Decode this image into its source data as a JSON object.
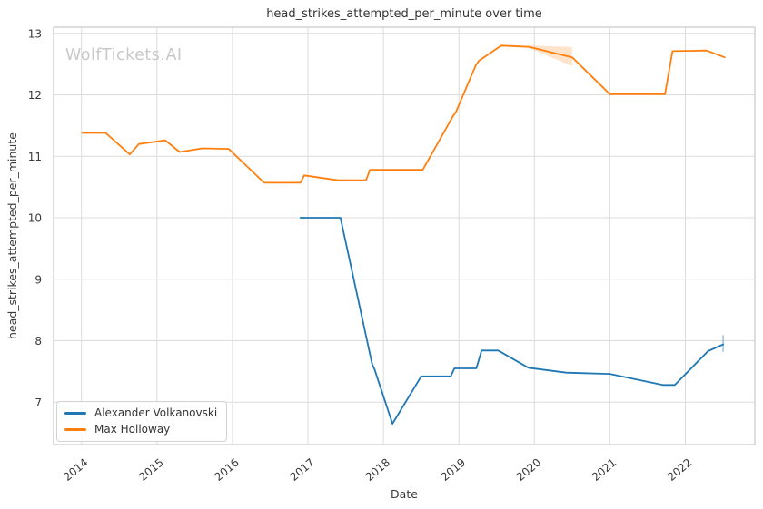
{
  "chart_data": {
    "type": "line",
    "title": "head_strikes_attempted_per_minute over time",
    "xlabel": "Date",
    "ylabel": "head_strikes_attempted_per_minute",
    "watermark": "WolfTickets.AI",
    "grid": true,
    "legend_position": "lower-left",
    "xlim": [
      2013.63,
      2022.92
    ],
    "ylim": [
      6.31,
      13.1
    ],
    "x_ticks": [
      2014,
      2015,
      2016,
      2017,
      2018,
      2019,
      2020,
      2021,
      2022
    ],
    "y_ticks": [
      7,
      8,
      9,
      10,
      11,
      12,
      13
    ],
    "series": [
      {
        "name": "Alexander Volkanovski",
        "color": "#1f77b4",
        "points": [
          [
            2016.9,
            10.0
          ],
          [
            2017.43,
            10.0
          ],
          [
            2017.85,
            7.62
          ],
          [
            2017.88,
            7.54
          ],
          [
            2018.12,
            6.65
          ],
          [
            2018.5,
            7.42
          ],
          [
            2018.89,
            7.42
          ],
          [
            2018.94,
            7.55
          ],
          [
            2019.23,
            7.55
          ],
          [
            2019.3,
            7.84
          ],
          [
            2019.52,
            7.84
          ],
          [
            2019.92,
            7.56
          ],
          [
            2020.42,
            7.48
          ],
          [
            2021.0,
            7.46
          ],
          [
            2021.7,
            7.28
          ],
          [
            2021.86,
            7.28
          ],
          [
            2022.3,
            7.83
          ],
          [
            2022.5,
            7.94
          ]
        ],
        "error_bar": {
          "x": 2022.5,
          "low": 7.82,
          "high": 8.09
        }
      },
      {
        "name": "Max Holloway",
        "color": "#ff7f0e",
        "points": [
          [
            2014.01,
            11.38
          ],
          [
            2014.32,
            11.38
          ],
          [
            2014.64,
            11.03
          ],
          [
            2014.76,
            11.2
          ],
          [
            2015.11,
            11.26
          ],
          [
            2015.3,
            11.07
          ],
          [
            2015.6,
            11.13
          ],
          [
            2015.95,
            11.12
          ],
          [
            2016.42,
            10.57
          ],
          [
            2016.9,
            10.57
          ],
          [
            2016.95,
            10.69
          ],
          [
            2017.4,
            10.61
          ],
          [
            2017.77,
            10.61
          ],
          [
            2017.82,
            10.78
          ],
          [
            2018.52,
            10.78
          ],
          [
            2018.92,
            11.65
          ],
          [
            2018.96,
            11.72
          ],
          [
            2019.22,
            12.47
          ],
          [
            2019.26,
            12.55
          ],
          [
            2019.56,
            12.8
          ],
          [
            2019.93,
            12.78
          ],
          [
            2020.5,
            12.61
          ],
          [
            2021.0,
            12.01
          ],
          [
            2021.73,
            12.01
          ],
          [
            2021.83,
            12.71
          ],
          [
            2022.28,
            12.72
          ],
          [
            2022.52,
            12.61
          ]
        ],
        "band": [
          {
            "x": 2019.93,
            "low": 12.76,
            "high": 12.8
          },
          {
            "x": 2020.5,
            "low": 12.47,
            "high": 12.78
          }
        ]
      }
    ]
  },
  "theme": {
    "grid_color": "#dcdcdc",
    "spine_color": "#c9c9c9",
    "text_color": "#3a3a3a",
    "watermark_color": "#c9c9c9",
    "line_width": 1.8,
    "band_opacity": 0.22,
    "error_bar_opacity": 0.45
  }
}
